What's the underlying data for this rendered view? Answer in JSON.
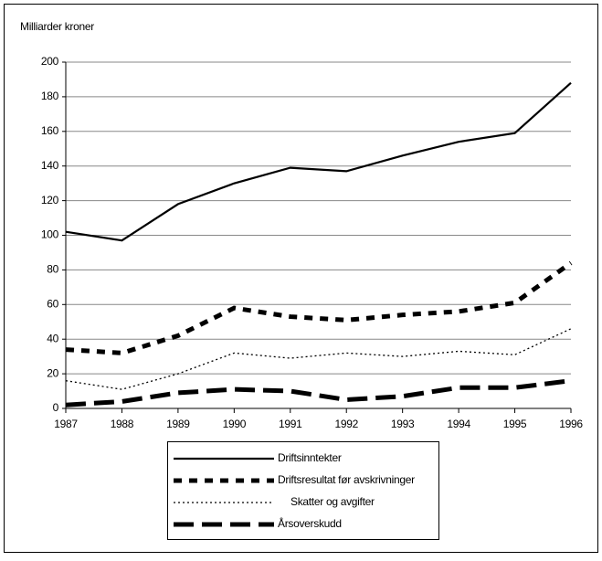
{
  "chart_data": {
    "type": "line",
    "y_label": "Milliarder kroner",
    "x": [
      1987,
      1988,
      1989,
      1990,
      1991,
      1992,
      1993,
      1994,
      1995,
      1996
    ],
    "xlim": [
      1987,
      1996
    ],
    "xticks": [
      1987,
      1988,
      1989,
      1990,
      1991,
      1992,
      1993,
      1994,
      1995,
      1996
    ],
    "ylim": [
      0,
      200
    ],
    "yticks": [
      0,
      20,
      40,
      60,
      80,
      100,
      120,
      140,
      160,
      180,
      200
    ],
    "grid": true,
    "legend": "bottom",
    "series": [
      {
        "name": "Driftsinntekter",
        "color": "#000000",
        "values": [
          102,
          97,
          118,
          130,
          139,
          137,
          146,
          154,
          159,
          188
        ]
      },
      {
        "name": "Driftsresultat før avskrivninger",
        "color": "#000000",
        "values": [
          34,
          32,
          42,
          58,
          53,
          51,
          54,
          56,
          61,
          84
        ]
      },
      {
        "name": "Skatter og avgifter",
        "color": "#000000",
        "values": [
          16,
          11,
          20,
          32,
          29,
          32,
          30,
          33,
          31,
          46
        ]
      },
      {
        "name": "Årsoverskudd",
        "color": "#000000",
        "values": [
          2,
          4,
          9,
          11,
          10,
          5,
          7,
          12,
          12,
          16
        ]
      }
    ]
  }
}
